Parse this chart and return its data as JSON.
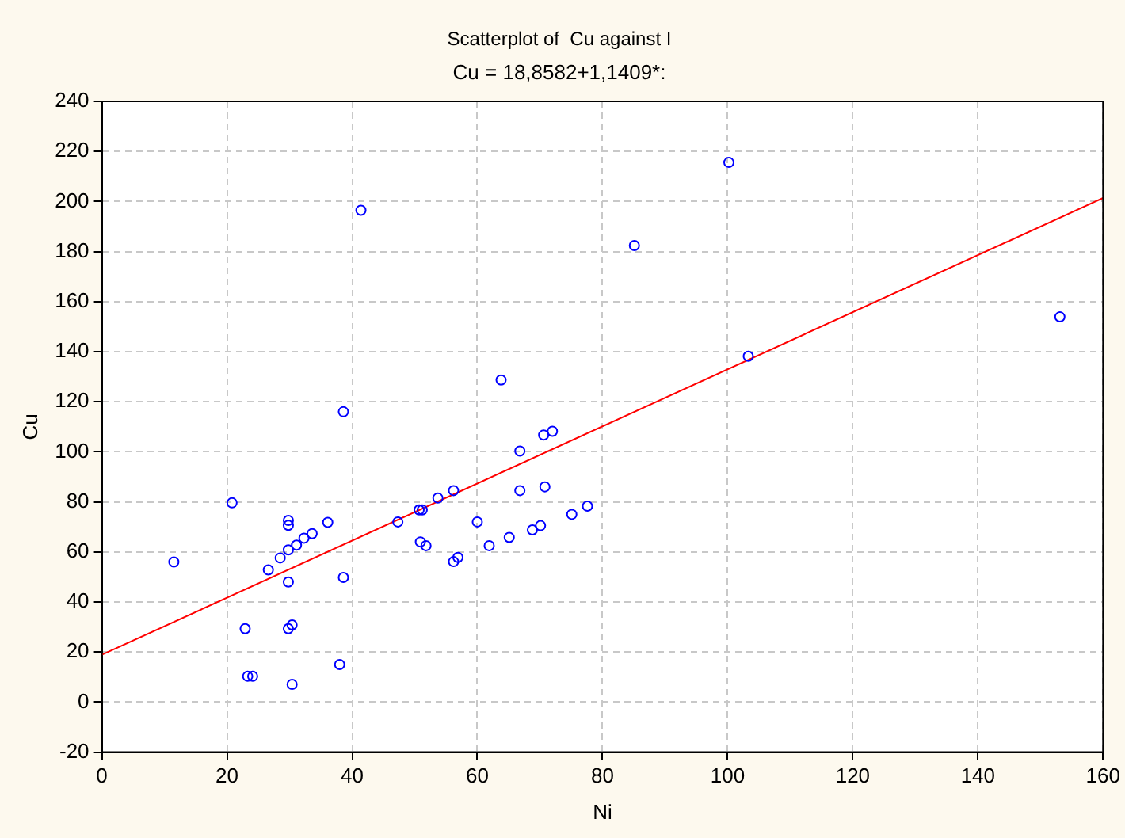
{
  "chart_data": {
    "type": "scatter",
    "title": "Scatterplot of  Cu against I",
    "subtitle": "Cu = 18,8582+1,1409*:",
    "xlabel": "Ni",
    "ylabel": "Cu",
    "xlim": [
      0,
      160
    ],
    "xticks": [
      0,
      20,
      40,
      60,
      80,
      100,
      120,
      140,
      160
    ],
    "ylim": [
      -20,
      240
    ],
    "yticks": [
      -20,
      0,
      20,
      40,
      60,
      80,
      100,
      120,
      140,
      160,
      180,
      200,
      220,
      240
    ],
    "grid": true,
    "marker": "circle",
    "series": [
      {
        "color": "#0000ff",
        "x": [
          11.5,
          20.8,
          22.9,
          23.3,
          24.1,
          26.6,
          28.5,
          29.8,
          29.8,
          29.8,
          29.8,
          29.8,
          30.4,
          30.4,
          31.1,
          32.3,
          33.6,
          36.1,
          38,
          38.6,
          38.6,
          41.4,
          47.3,
          50.7,
          51.2,
          50.9,
          51.8,
          53.7,
          56.2,
          56.2,
          56.9,
          60,
          61.9,
          63.8,
          65.1,
          66.8,
          66.8,
          68.8,
          70.1,
          70.6,
          70.8,
          72,
          75.1,
          77.6,
          85.1,
          100.2,
          103.3,
          153.1
        ],
        "values": [
          56,
          79.6,
          29.3,
          10.3,
          10.3,
          52.8,
          57.6,
          60.8,
          72.6,
          70.6,
          48,
          29.3,
          30.8,
          7.1,
          62.7,
          65.5,
          67.3,
          71.8,
          15,
          49.8,
          116,
          196.5,
          72,
          76.8,
          76.8,
          64,
          62.5,
          81.5,
          84.5,
          56.1,
          57.8,
          72,
          62.5,
          128.7,
          65.8,
          100.3,
          84.5,
          68.8,
          70.5,
          106.7,
          86,
          108.2,
          75,
          78.3,
          182.4,
          215.6,
          138.2,
          153.9
        ]
      },
      {
        "type": "line",
        "color": "#ff0000",
        "line_style": "solid",
        "marker": "none",
        "x": [
          0,
          160
        ],
        "values": [
          18.9,
          201.4
        ]
      }
    ]
  }
}
